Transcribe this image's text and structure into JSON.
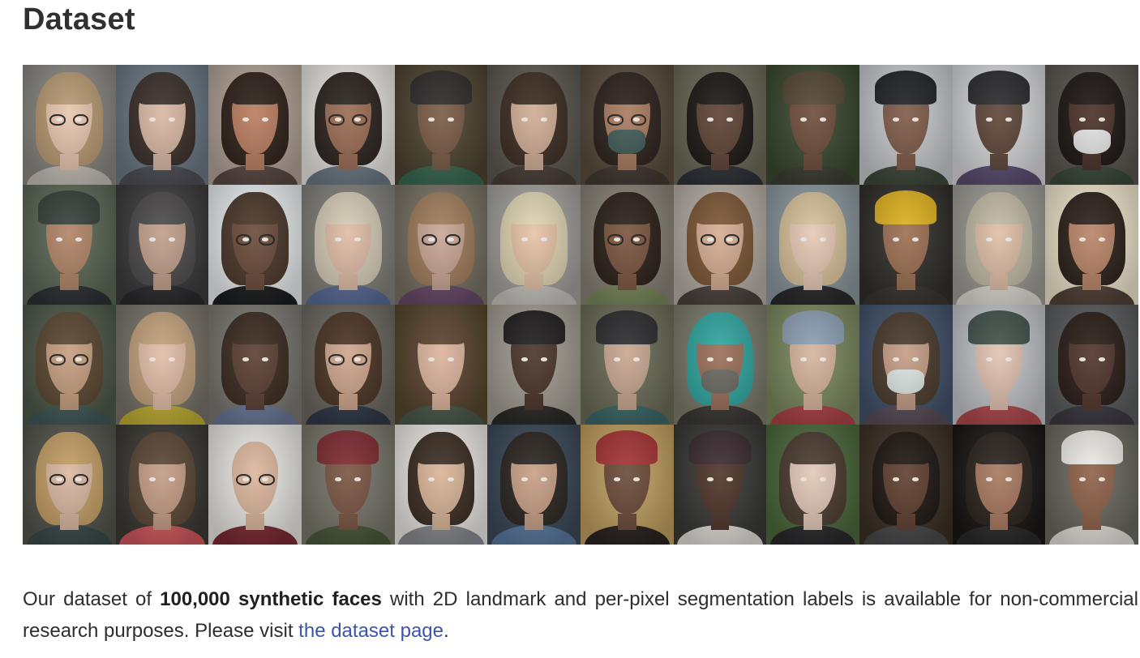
{
  "section": {
    "title": "Dataset"
  },
  "gallery": {
    "rows": 4,
    "columns": 12,
    "faces": [
      {
        "bg": "#8c8a84",
        "skin": "#e8c6ae",
        "hair": "#b89a72",
        "cloth": "#c9c4bb",
        "glasses": true
      },
      {
        "bg": "#6d7a86",
        "skin": "#d9b7a2",
        "hair": "#3a2e28",
        "cloth": "#4f5159"
      },
      {
        "bg": "#b5a69a",
        "skin": "#b97c5e",
        "hair": "#2d2018",
        "cloth": "#5b4a44"
      },
      {
        "bg": "#ece9e4",
        "skin": "#9a6b52",
        "hair": "#2a221d",
        "cloth": "#6e7b87",
        "glasses": true
      },
      {
        "bg": "#4f4632",
        "skin": "#7a5a46",
        "cloth": "#3b6a53",
        "hat": "#2e2a2a"
      },
      {
        "bg": "#5e5a52",
        "skin": "#d0ac94",
        "hair": "#3b2c22",
        "cloth": "#4b4138"
      },
      {
        "bg": "#5a4e3e",
        "skin": "#a87a5e",
        "hair": "#2b211b",
        "cloth": "#433a34",
        "glasses": true,
        "mask": "#3f5a55"
      },
      {
        "bg": "#6d6a5a",
        "skin": "#5e4234",
        "hair": "#1c1714",
        "cloth": "#2f3339"
      },
      {
        "bg": "#3b4a30",
        "skin": "#6e4c3a",
        "cloth": "#3e3f33",
        "hat": "#544634"
      },
      {
        "bg": "#c9ccd0",
        "skin": "#7e5a48",
        "cloth": "#3f4a3c",
        "hat": "#1f2226"
      },
      {
        "bg": "#d9dadc",
        "skin": "#5d4538",
        "cloth": "#5c4f74",
        "hat": "#2a2a2e"
      },
      {
        "bg": "#5b5650",
        "skin": "#4a3027",
        "hair": "#1c1512",
        "cloth": "#3c4b3c",
        "mask": "#e7e7e7"
      },
      {
        "bg": "#5d6a58",
        "skin": "#b08466",
        "cloth": "#2f3136",
        "hat": "#36403a"
      },
      {
        "bg": "#3d3d3f",
        "skin": "#c19f8a",
        "hair": "#4c4a4a",
        "cloth": "#2c2c30"
      },
      {
        "bg": "#eef2f4",
        "skin": "#6a4a3a",
        "hair": "#4a3628",
        "cloth": "#1c1e20",
        "glasses": true
      },
      {
        "bg": "#85837d",
        "skin": "#e0bca6",
        "hair": "#d7cdb8",
        "cloth": "#5b6e9a"
      },
      {
        "bg": "#7a7466",
        "skin": "#c9a594",
        "hair": "#a07c5a",
        "cloth": "#6a4c6a",
        "glasses": true
      },
      {
        "bg": "#a6a4a0",
        "skin": "#e6c2a6",
        "hair": "#e2d6b4",
        "cloth": "#c9c8c2"
      },
      {
        "bg": "#8a8478",
        "skin": "#7a533e",
        "hair": "#2b1f18",
        "cloth": "#7b8c5c",
        "glasses": true
      },
      {
        "bg": "#b8b1a8",
        "skin": "#d6ad92",
        "hair": "#7c5634",
        "cloth": "#4c4440",
        "glasses": true
      },
      {
        "bg": "#8d9aa0",
        "skin": "#e6c8b4",
        "hair": "#d9c29a",
        "cloth": "#2b2a2c"
      },
      {
        "bg": "#32302c",
        "skin": "#9b6e50",
        "cloth": "#3b3633",
        "hat": "#e0b21e"
      },
      {
        "bg": "#a09e96",
        "skin": "#e0bea6",
        "hair": "#c2bca6",
        "cloth": "#e4e0d8"
      },
      {
        "bg": "#f2ead0",
        "skin": "#b98466",
        "hair": "#2c2019",
        "cloth": "#524238"
      },
      {
        "bg": "#4f5a4a",
        "skin": "#c69e7e",
        "hair": "#5a4630",
        "cloth": "#425a58",
        "glasses": true
      },
      {
        "bg": "#7b766c",
        "skin": "#e1bda6",
        "hair": "#c3a27c",
        "cloth": "#c6b236"
      },
      {
        "bg": "#7c7a74",
        "skin": "#5a3e30",
        "hair": "#3a2a20",
        "cloth": "#6c7a9a"
      },
      {
        "bg": "#6e6a62",
        "skin": "#cfa58c",
        "hair": "#4a3424",
        "cloth": "#313a4a",
        "glasses": true
      },
      {
        "bg": "#57482e",
        "skin": "#dcb49c",
        "hair": "#5c4430",
        "cloth": "#4c5a4a"
      },
      {
        "bg": "#a49f94",
        "skin": "#4a3428",
        "cloth": "#2c2a28",
        "hat": "#1f1d1d"
      },
      {
        "bg": "#6e6e5a",
        "skin": "#c8a690",
        "cloth": "#3e6a6a",
        "hat": "#2c2c2e"
      },
      {
        "bg": "#7d7d6e",
        "skin": "#9a6e58",
        "hair": "#2fa6a0",
        "cloth": "#3c3a36",
        "mask": "#6a6a62"
      },
      {
        "bg": "#7c8a60",
        "skin": "#d6b49c",
        "cloth": "#b0434a",
        "hat": "#8ea0b4"
      },
      {
        "bg": "#44546c",
        "skin": "#c49c84",
        "hair": "#4a3a2c",
        "cloth": "#5a4e5a",
        "mask": "#dfe6e2"
      },
      {
        "bg": "#c5c8cc",
        "skin": "#e2c2b0",
        "cloth": "#b24a4e",
        "hat": "#42524a"
      },
      {
        "bg": "#5a5c5e",
        "skin": "#4f342a",
        "hair": "#2a1c16",
        "cloth": "#3d3b42"
      },
      {
        "bg": "#55564e",
        "skin": "#d9b7a0",
        "hair": "#c49e64",
        "cloth": "#3c4a4c",
        "glasses": true
      },
      {
        "bg": "#3c3a34",
        "skin": "#c49c84",
        "hair": "#5a4634",
        "cloth": "#d45a5e"
      },
      {
        "bg": "#ecebe6",
        "skin": "#dcb69c",
        "cloth": "#7c2a34",
        "glasses": true
      },
      {
        "bg": "#7a786c",
        "skin": "#7a5442",
        "cloth": "#4a5a3a",
        "hat": "#7e2a30"
      },
      {
        "bg": "#efece8",
        "skin": "#d9b496",
        "hair": "#3a2c22",
        "cloth": "#8a8c92"
      },
      {
        "bg": "#3c4a5a",
        "skin": "#c89f84",
        "hair": "#2a241f",
        "cloth": "#5a7aa0"
      },
      {
        "bg": "#c4a262",
        "skin": "#6a4a38",
        "cloth": "#2a2220",
        "hat": "#a53234"
      },
      {
        "bg": "#3a3a38",
        "skin": "#4e3428",
        "cloth": "#e6e2dc",
        "hat": "#3a2a30"
      },
      {
        "bg": "#4c6a3c",
        "skin": "#e2c8b8",
        "hair": "#4a3a2e",
        "cloth": "#2a2a2c"
      },
      {
        "bg": "#3c3026",
        "skin": "#5e3e2e",
        "hair": "#1e1612",
        "cloth": "#4a4a4c"
      },
      {
        "bg": "#1a1816",
        "skin": "#a8785e",
        "hair": "#2a221c",
        "cloth": "#2c2a2a"
      },
      {
        "bg": "#6c6a60",
        "skin": "#8e6148",
        "cloth": "#eae6e0",
        "hat": "#f0ede8"
      }
    ]
  },
  "description": {
    "intro": "Our dataset of ",
    "highlight": "100,000 synthetic faces",
    "middle": " with 2D landmark and per-pixel segmentation labels is available for non-commercial research purposes. Please visit ",
    "link_text": "the dataset page",
    "end": "."
  }
}
